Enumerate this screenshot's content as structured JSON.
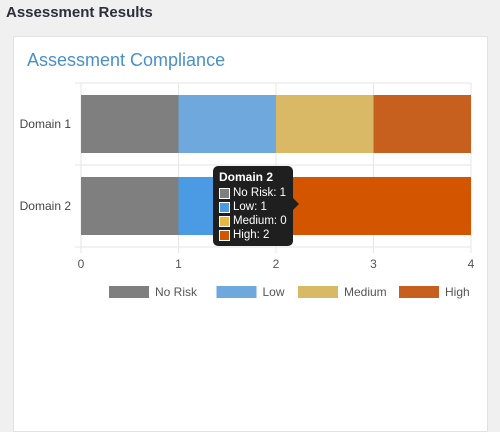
{
  "page": {
    "title": "Assessment Results"
  },
  "card": {
    "title": "Assessment Compliance"
  },
  "chart_data": {
    "type": "bar",
    "orientation": "horizontal",
    "stacked": true,
    "categories": [
      "Domain 1",
      "Domain 2"
    ],
    "series": [
      {
        "name": "No Risk",
        "values": [
          1,
          1
        ],
        "color": "#7f7f7f"
      },
      {
        "name": "Low",
        "values": [
          1,
          1
        ],
        "color": "#6fa8dc"
      },
      {
        "name": "Medium",
        "values": [
          1,
          0
        ],
        "color": "#d9b965"
      },
      {
        "name": "High",
        "values": [
          1,
          2
        ],
        "color": "#c7601f"
      }
    ],
    "xlim": [
      0,
      4
    ],
    "xticks": [
      "0",
      "1",
      "2",
      "3",
      "4"
    ],
    "grid": true,
    "legend_position": "bottom",
    "highlight": {
      "category_index": 1,
      "colors": [
        "#7f7f7f",
        "#4a9be4",
        "#e8b843",
        "#d45500"
      ]
    }
  },
  "tooltip": {
    "title": "Domain 2",
    "rows": [
      {
        "label": "No Risk: 1",
        "color": "#7f7f7f"
      },
      {
        "label": "Low: 1",
        "color": "#4a9be4"
      },
      {
        "label": "Medium: 0",
        "color": "#e8b843"
      },
      {
        "label": "High: 2",
        "color": "#d45500"
      }
    ]
  }
}
